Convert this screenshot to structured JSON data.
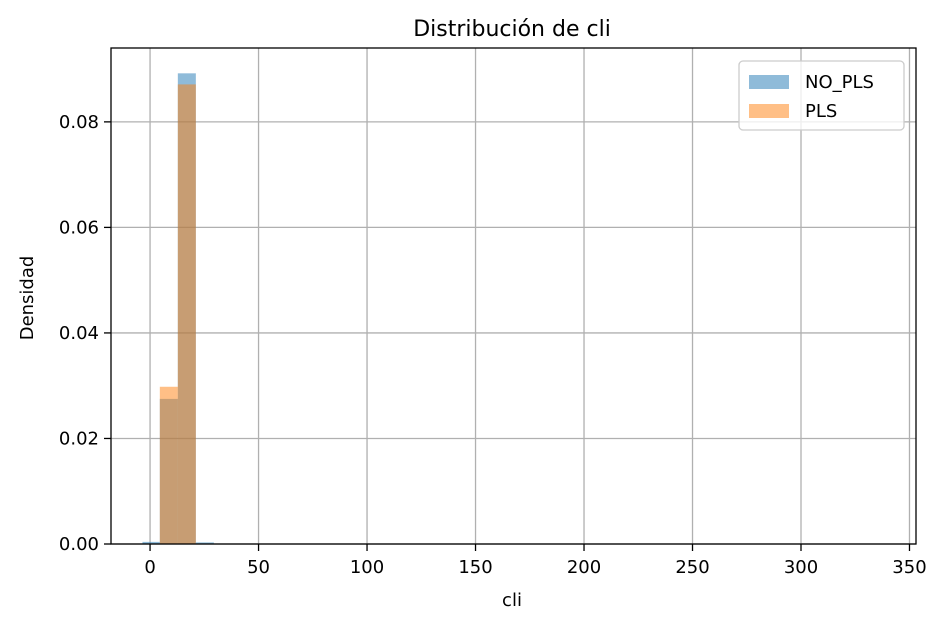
{
  "chart_data": {
    "type": "bar",
    "title": "Distribución de cli",
    "xlabel": "cli",
    "ylabel": "Densidad",
    "xlim": [
      -18,
      353
    ],
    "ylim": [
      0,
      0.094
    ],
    "x_ticks": [
      0,
      50,
      100,
      150,
      200,
      250,
      300,
      350
    ],
    "x_tick_labels": [
      "0",
      "50",
      "100",
      "150",
      "200",
      "250",
      "300",
      "350"
    ],
    "y_ticks": [
      0,
      0.02,
      0.04,
      0.06,
      0.08
    ],
    "y_tick_labels": [
      "0.00",
      "0.02",
      "0.04",
      "0.06",
      "0.08"
    ],
    "grid": true,
    "legend_position": "top-right",
    "series": [
      {
        "name": "NO_PLS",
        "color": "#1f77b4",
        "opacity": 0.5,
        "bins": [
          {
            "x0": -3.5,
            "x1": 4.5,
            "value": 0.0004
          },
          {
            "x0": 4.5,
            "x1": 12.8,
            "value": 0.0275
          },
          {
            "x0": 12.8,
            "x1": 21.1,
            "value": 0.0892
          },
          {
            "x0": 21.1,
            "x1": 29.4,
            "value": 0.0003
          }
        ]
      },
      {
        "name": "PLS",
        "color": "#ff7f0e",
        "opacity": 0.5,
        "bins": [
          {
            "x0": 4.5,
            "x1": 12.8,
            "value": 0.0298
          },
          {
            "x0": 12.8,
            "x1": 21.1,
            "value": 0.0871
          }
        ]
      }
    ]
  }
}
